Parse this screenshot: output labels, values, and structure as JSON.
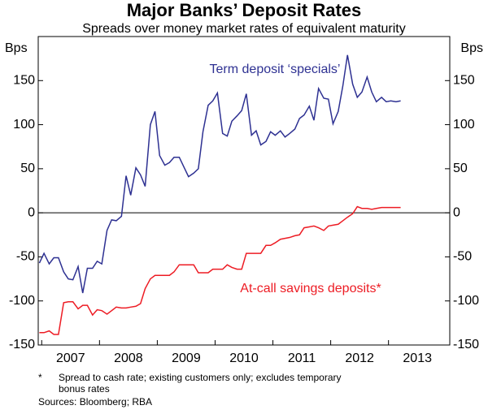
{
  "chart_data": {
    "type": "line",
    "title": "Major Banks’ Deposit Rates",
    "subtitle": "Spreads over money market rates of equivalent maturity",
    "ylabel": "Bps",
    "y2label": "Bps",
    "x": [
      2006.96,
      2007.04,
      2007.13,
      2007.21,
      2007.29,
      2007.38,
      2007.46,
      2007.54,
      2007.63,
      2007.71,
      2007.79,
      2007.88,
      2007.96,
      2008.04,
      2008.13,
      2008.21,
      2008.29,
      2008.38,
      2008.46,
      2008.54,
      2008.63,
      2008.71,
      2008.79,
      2008.88,
      2008.96,
      2009.04,
      2009.13,
      2009.21,
      2009.29,
      2009.38,
      2009.46,
      2009.54,
      2009.63,
      2009.71,
      2009.79,
      2009.88,
      2009.96,
      2010.04,
      2010.13,
      2010.21,
      2010.29,
      2010.38,
      2010.46,
      2010.54,
      2010.63,
      2010.71,
      2010.79,
      2010.88,
      2010.96,
      2011.04,
      2011.13,
      2011.21,
      2011.29,
      2011.38,
      2011.46,
      2011.54,
      2011.63,
      2011.71,
      2011.79,
      2011.88,
      2011.96,
      2012.04,
      2012.13,
      2012.21,
      2012.29,
      2012.38,
      2012.46,
      2012.54,
      2012.63,
      2012.71,
      2012.79,
      2012.88,
      2012.96,
      2013.04,
      2013.13,
      2013.21
    ],
    "series": [
      {
        "name": "Term deposit ‘specials’",
        "color": "#2e3192",
        "values": [
          -57,
          -46,
          -58,
          -51,
          -51,
          -67,
          -75,
          -76,
          -61,
          -91,
          -63,
          -63,
          -55,
          -58,
          -20,
          -8,
          -9,
          -4,
          42,
          20,
          51,
          43,
          30,
          100,
          115,
          65,
          54,
          57,
          63,
          63,
          52,
          41,
          45,
          50,
          92,
          122,
          127,
          136,
          90,
          87,
          104,
          110,
          116,
          135,
          88,
          93,
          77,
          81,
          92,
          88,
          93,
          86,
          90,
          95,
          107,
          111,
          121,
          105,
          141,
          130,
          129,
          101,
          115,
          144,
          179,
          146,
          131,
          137,
          154,
          137,
          126,
          131,
          126,
          127,
          126,
          127
        ]
      },
      {
        "name": "At-call savings deposits*",
        "color": "#ed1c24",
        "values": [
          -136,
          -136,
          -134,
          -138,
          -138,
          -102,
          -101,
          -101,
          -109,
          -105,
          -105,
          -116,
          -110,
          -111,
          -115,
          -111,
          -107,
          -108,
          -108,
          -107,
          -106,
          -103,
          -86,
          -75,
          -71,
          -71,
          -71,
          -71,
          -67,
          -59,
          -59,
          -59,
          -59,
          -68,
          -68,
          -68,
          -64,
          -64,
          -64,
          -59,
          -62,
          -64,
          -64,
          -46,
          -46,
          -46,
          -46,
          -37,
          -37,
          -34,
          -30,
          -29,
          -28,
          -26,
          -25,
          -17,
          -16,
          -15,
          -17,
          -20,
          -15,
          -14,
          -13,
          -9,
          -5,
          -1,
          7,
          5,
          5,
          4,
          5,
          6,
          6,
          6,
          6,
          6
        ]
      }
    ],
    "xlim": [
      2006.94,
      2014.06
    ],
    "xticks": [
      2007,
      2008,
      2009,
      2010,
      2011,
      2012,
      2013
    ],
    "ylim": [
      -150,
      200
    ],
    "yticks": [
      -150,
      -100,
      -50,
      0,
      50,
      100,
      150
    ],
    "y2lim": [
      -150,
      200
    ],
    "y2ticks": [
      -150,
      -100,
      -50,
      0,
      50,
      100,
      150
    ],
    "footnote": {
      "marker": "*",
      "text": "Spread to cash rate; existing customers only; excludes temporary bonus rates"
    },
    "source": "Sources: Bloomberg; RBA"
  }
}
